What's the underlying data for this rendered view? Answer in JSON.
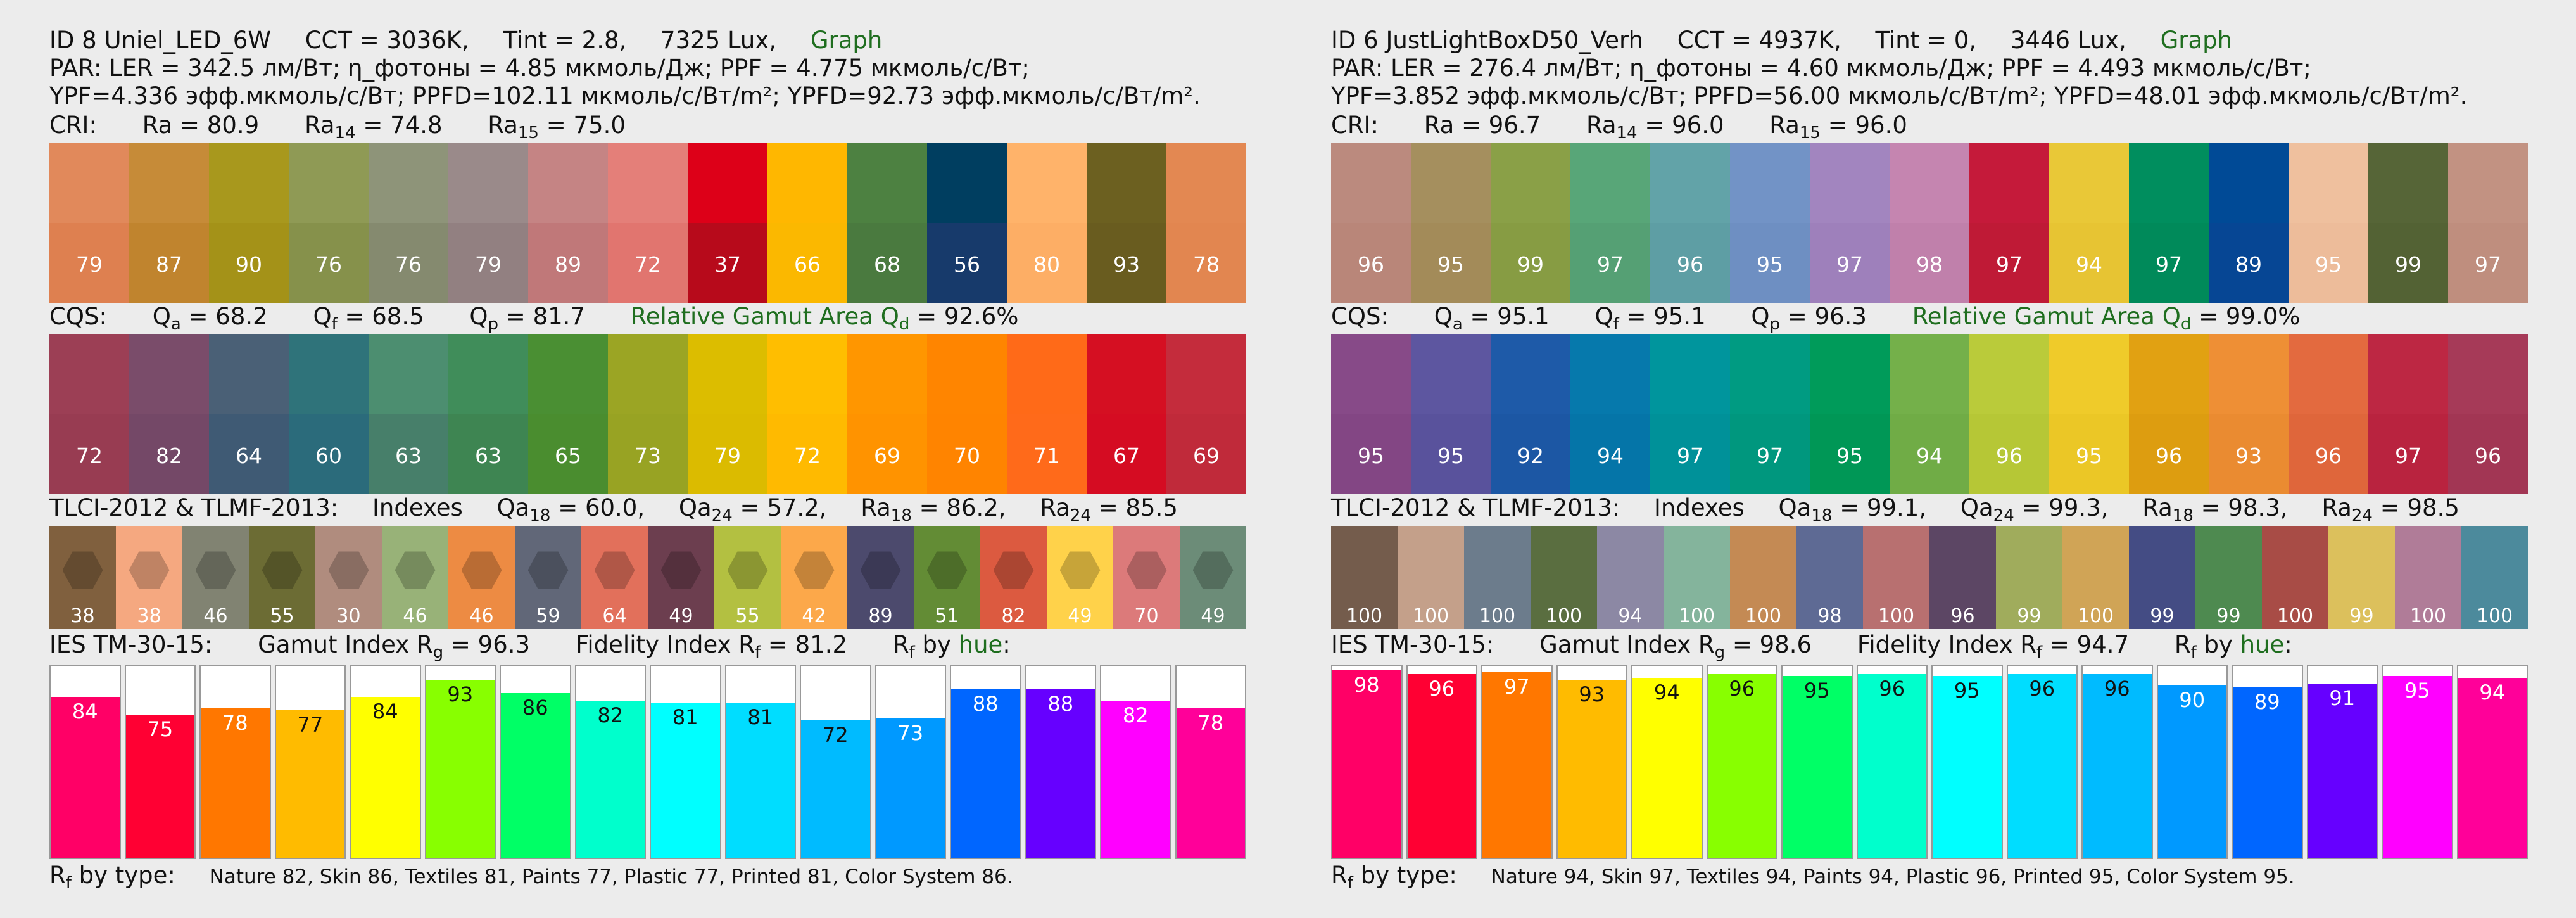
{
  "panels": [
    {
      "header": {
        "id_text": "ID 8 Uniel_LED_6W",
        "cct": "CCT = 3036K,",
        "tint": "Tint = 2.8,",
        "lux": "7325 Lux,",
        "graph_link": "Graph"
      },
      "par_line": "PAR:  LER = 342.5 лм/Вт; η_фотоны = 4.85 мкмоль/Дж; PPF = 4.775 мкмоль/с/Вт;",
      "ypf_line": "YPF=4.336 эфф.мкмоль/с/Вт; PPFD=102.11 мкмоль/с/Вт/m²; YPFD=92.73 эфф.мкмоль/с/Вт/m².",
      "cri": {
        "label": "CRI:",
        "ra": "Ra = 80.9",
        "ra14_pre": "Ra",
        "ra14_sub": "14",
        "ra14_val": " = 74.8",
        "ra15_pre": "Ra",
        "ra15_sub": "15",
        "ra15_val": " = 75.0"
      },
      "cri_swatches": [
        {
          "v": "79",
          "top": "#e1895b",
          "bot": "#de8050"
        },
        {
          "v": "87",
          "top": "#c68b38",
          "bot": "#c0842e"
        },
        {
          "v": "90",
          "top": "#a8981d",
          "bot": "#a49218"
        },
        {
          "v": "76",
          "top": "#8f9a55",
          "bot": "#86914b"
        },
        {
          "v": "76",
          "top": "#8e9479",
          "bot": "#858a6f"
        },
        {
          "v": "79",
          "top": "#9a8a8a",
          "bot": "#928081"
        },
        {
          "v": "89",
          "top": "#c58484",
          "bot": "#c07879"
        },
        {
          "v": "72",
          "top": "#e47f79",
          "bot": "#e1756f"
        },
        {
          "v": "37",
          "top": "#dd0018",
          "bot": "#b70a1b"
        },
        {
          "v": "66",
          "top": "#ffb700",
          "bot": "#fbb800"
        },
        {
          "v": "68",
          "top": "#4d8141",
          "bot": "#4a7a3f"
        },
        {
          "v": "56",
          "top": "#003e60",
          "bot": "#173a6b"
        },
        {
          "v": "80",
          "top": "#ffb36a",
          "bot": "#fdae65"
        },
        {
          "v": "93",
          "top": "#6c6020",
          "bot": "#695c1f"
        },
        {
          "v": "78",
          "top": "#e38852",
          "bot": "#e28650"
        }
      ],
      "cqs": {
        "label": "CQS:",
        "qa_pre": "Q",
        "qa_sub": "a",
        "qa_val": " = 68.2",
        "qf_pre": "Q",
        "qf_sub": "f",
        "qf_val": " = 68.5",
        "qp_pre": "Q",
        "qp_sub": "p",
        "qp_val": " = 81.7",
        "gamut_pre": "Relative Gamut Area Q",
        "gamut_sub": "d",
        "gamut_val": " = 92.6%"
      },
      "cqs_swatches": [
        {
          "v": "72",
          "top": "#9c3f55",
          "bot": "#983c52"
        },
        {
          "v": "82",
          "top": "#7a4c6a",
          "bot": "#744867"
        },
        {
          "v": "64",
          "top": "#4a6076",
          "bot": "#3f5a74"
        },
        {
          "v": "60",
          "top": "#2f737a",
          "bot": "#2b6b7b"
        },
        {
          "v": "63",
          "top": "#4c8e70",
          "bot": "#477f6a"
        },
        {
          "v": "63",
          "top": "#408d5a",
          "bot": "#3e8552"
        },
        {
          "v": "65",
          "top": "#4a8f33",
          "bot": "#4a8d2f"
        },
        {
          "v": "73",
          "top": "#9ba524",
          "bot": "#98a323"
        },
        {
          "v": "79",
          "top": "#dcbd00",
          "bot": "#dbbb00"
        },
        {
          "v": "72",
          "top": "#ffbe00",
          "bot": "#ffba00"
        },
        {
          "v": "69",
          "top": "#ff9600",
          "bot": "#ff9300"
        },
        {
          "v": "70",
          "top": "#ff8500",
          "bot": "#ff8400"
        },
        {
          "v": "71",
          "top": "#ff6a18",
          "bot": "#ff6a1a"
        },
        {
          "v": "67",
          "top": "#d50f22",
          "bot": "#d50c22"
        },
        {
          "v": "69",
          "top": "#c42c3c",
          "bot": "#c02a3a"
        }
      ],
      "tlci": {
        "label": "TLCI-2012 & TLMF-2013:",
        "indexes": "Indexes",
        "qa18_pre": "Qa",
        "qa18_sub": "18",
        "qa18_val": " = 60.0,",
        "qa24_pre": "Qa",
        "qa24_sub": "24",
        "qa24_val": " = 57.2,",
        "ra18_pre": "Ra",
        "ra18_sub": "18",
        "ra18_val": " = 86.2,",
        "ra24_pre": "Ra",
        "ra24_sub": "24",
        "ra24_val": " = 85.5"
      },
      "tlci_swatches": [
        {
          "v": "38",
          "c": "#80603e"
        },
        {
          "v": "38",
          "c": "#f5a880"
        },
        {
          "v": "46",
          "c": "#818372"
        },
        {
          "v": "55",
          "c": "#6c6c34"
        },
        {
          "v": "30",
          "c": "#b08c7e"
        },
        {
          "v": "46",
          "c": "#98b278"
        },
        {
          "v": "46",
          "c": "#ed8b43"
        },
        {
          "v": "59",
          "c": "#616778"
        },
        {
          "v": "64",
          "c": "#e2705b"
        },
        {
          "v": "49",
          "c": "#6c3e4f"
        },
        {
          "v": "55",
          "c": "#b3c041"
        },
        {
          "v": "42",
          "c": "#fca84a"
        },
        {
          "v": "89",
          "c": "#4c4a6d"
        },
        {
          "v": "51",
          "c": "#638c35"
        },
        {
          "v": "82",
          "c": "#dc5a40"
        },
        {
          "v": "49",
          "c": "#ffd24a"
        },
        {
          "v": "70",
          "c": "#dc7a7a"
        },
        {
          "v": "49",
          "c": "#6c8c78"
        }
      ],
      "tm30": {
        "label": "IES TM-30-15:",
        "rg_pre": "Gamut Index R",
        "rg_sub": "g",
        "rg_val": " = 96.3",
        "rf_pre": "Fidelity Index R",
        "rf_sub": "f",
        "rf_val": " = 81.2",
        "byhue_pre": "R",
        "byhue_sub": "f",
        "byhue_mid": "  by ",
        "byhue_link": "hue",
        "byhue_end": ":"
      },
      "tm30_bars": [
        {
          "v": "84",
          "pct": 84,
          "c": "#ff0066",
          "dark": false
        },
        {
          "v": "75",
          "pct": 75,
          "c": "#ff0033",
          "dark": false
        },
        {
          "v": "78",
          "pct": 78,
          "c": "#ff7700",
          "dark": false
        },
        {
          "v": "77",
          "pct": 77,
          "c": "#ffbb00",
          "dark": true
        },
        {
          "v": "84",
          "pct": 84,
          "c": "#ffff00",
          "dark": true
        },
        {
          "v": "93",
          "pct": 93,
          "c": "#88ff00",
          "dark": true
        },
        {
          "v": "86",
          "pct": 86,
          "c": "#00ff66",
          "dark": true
        },
        {
          "v": "82",
          "pct": 82,
          "c": "#00ffcc",
          "dark": true
        },
        {
          "v": "81",
          "pct": 81,
          "c": "#00ffff",
          "dark": true
        },
        {
          "v": "81",
          "pct": 81,
          "c": "#00ddff",
          "dark": true
        },
        {
          "v": "72",
          "pct": 72,
          "c": "#00bbff",
          "dark": true
        },
        {
          "v": "73",
          "pct": 73,
          "c": "#0099ff",
          "dark": false
        },
        {
          "v": "88",
          "pct": 88,
          "c": "#0066ff",
          "dark": false
        },
        {
          "v": "88",
          "pct": 88,
          "c": "#6600ff",
          "dark": false
        },
        {
          "v": "82",
          "pct": 82,
          "c": "#ff00ff",
          "dark": false
        },
        {
          "v": "78",
          "pct": 78,
          "c": "#ff0099",
          "dark": false
        }
      ],
      "rf_type": {
        "pre": "R",
        "sub": "f",
        "mid": "  by type:",
        "values": "Nature 82,  Skin 86,  Textiles 81,  Paints 77,  Plastic 77,  Printed 81,  Color System 86."
      }
    },
    {
      "header": {
        "id_text": "ID 6 JustLightBoxD50_Verh",
        "cct": "CCT = 4937K,",
        "tint": "Tint = 0,",
        "lux": "3446 Lux,",
        "graph_link": "Graph"
      },
      "par_line": "PAR:  LER = 276.4 лм/Вт; η_фотоны = 4.60 мкмоль/Дж; PPF = 4.493 мкмоль/с/Вт;",
      "ypf_line": "YPF=3.852 эфф.мкмоль/с/Вт; PPFD=56.00 мкмоль/с/Вт/m²; YPFD=48.01 эфф.мкмоль/с/Вт/m².",
      "cri": {
        "label": "CRI:",
        "ra": "Ra = 96.7",
        "ra14_pre": "Ra",
        "ra14_sub": "14",
        "ra14_val": " = 96.0",
        "ra15_pre": "Ra",
        "ra15_sub": "15",
        "ra15_val": " = 96.0"
      },
      "cri_swatches": [
        {
          "v": "96",
          "top": "#bb8a7e",
          "bot": "#b98679"
        },
        {
          "v": "95",
          "top": "#a58f5e",
          "bot": "#a38b59"
        },
        {
          "v": "99",
          "top": "#8aa047",
          "bot": "#879c43"
        },
        {
          "v": "97",
          "top": "#58a678",
          "bot": "#55a074"
        },
        {
          "v": "96",
          "top": "#62a3a8",
          "bot": "#5e9ea4"
        },
        {
          "v": "95",
          "top": "#7293c6",
          "bot": "#6e8fc2"
        },
        {
          "v": "97",
          "top": "#a285bf",
          "bot": "#9e80bb"
        },
        {
          "v": "98",
          "top": "#c585b0",
          "bot": "#c080ab"
        },
        {
          "v": "97",
          "top": "#c51a3a",
          "bot": "#bf1a36"
        },
        {
          "v": "94",
          "top": "#e9c837",
          "bot": "#e7c433"
        },
        {
          "v": "97",
          "top": "#008e5e",
          "bot": "#008a5a"
        },
        {
          "v": "89",
          "top": "#004a96",
          "bot": "#064694"
        },
        {
          "v": "95",
          "top": "#efc09e",
          "bot": "#edbc9a"
        },
        {
          "v": "99",
          "top": "#566537",
          "bot": "#536234"
        },
        {
          "v": "97",
          "top": "#c29282",
          "bot": "#bf8e7e"
        }
      ],
      "cqs": {
        "label": "CQS:",
        "qa_pre": "Q",
        "qa_sub": "a",
        "qa_val": " = 95.1",
        "qf_pre": "Q",
        "qf_sub": "f",
        "qf_val": " = 95.1",
        "qp_pre": "Q",
        "qp_sub": "p",
        "qp_val": " = 96.3",
        "gamut_pre": "Relative Gamut Area Q",
        "gamut_sub": "d",
        "gamut_val": " = 99.0%"
      },
      "cqs_swatches": [
        {
          "v": "95",
          "top": "#874a88",
          "bot": "#834684"
        },
        {
          "v": "95",
          "top": "#5d56a0",
          "bot": "#59529c"
        },
        {
          "v": "92",
          "top": "#1e5aa8",
          "bot": "#1c57a4"
        },
        {
          "v": "94",
          "top": "#0679ac",
          "bot": "#0575a8"
        },
        {
          "v": "97",
          "top": "#00959d",
          "bot": "#009199"
        },
        {
          "v": "97",
          "top": "#009b82",
          "bot": "#00977e"
        },
        {
          "v": "95",
          "top": "#009b5a",
          "bot": "#009756"
        },
        {
          "v": "94",
          "top": "#74b04a",
          "bot": "#70ac46"
        },
        {
          "v": "96",
          "top": "#bacb3a",
          "bot": "#b6c736"
        },
        {
          "v": "95",
          "top": "#efcb2a",
          "bot": "#ebc726"
        },
        {
          "v": "96",
          "top": "#e1a112",
          "bot": "#dd9d10"
        },
        {
          "v": "93",
          "top": "#ee8f35",
          "bot": "#ea8b31"
        },
        {
          "v": "96",
          "top": "#e36a3f",
          "bot": "#df663b"
        },
        {
          "v": "97",
          "top": "#bd2743",
          "bot": "#b9233f"
        },
        {
          "v": "96",
          "top": "#a63a58",
          "bot": "#a23654"
        }
      ],
      "tlci": {
        "label": "TLCI-2012 & TLMF-2013:",
        "indexes": "Indexes",
        "qa18_pre": "Qa",
        "qa18_sub": "18",
        "qa18_val": " = 99.1,",
        "qa24_pre": "Qa",
        "qa24_sub": "24",
        "qa24_val": " = 99.3,",
        "ra18_pre": "Ra",
        "ra18_sub": "18",
        "ra18_val": " = 98.3,",
        "ra24_pre": "Ra",
        "ra24_sub": "24",
        "ra24_val": " = 98.5"
      },
      "tlci_swatches": [
        {
          "v": "100",
          "c": "#745c4c"
        },
        {
          "v": "100",
          "c": "#c4a08a"
        },
        {
          "v": "100",
          "c": "#6c7c8c"
        },
        {
          "v": "100",
          "c": "#5a6e40"
        },
        {
          "v": "94",
          "c": "#8c88a4"
        },
        {
          "v": "100",
          "c": "#84b49c"
        },
        {
          "v": "100",
          "c": "#c48a54"
        },
        {
          "v": "98",
          "c": "#5e6a94"
        },
        {
          "v": "100",
          "c": "#b87070"
        },
        {
          "v": "96",
          "c": "#5c4664"
        },
        {
          "v": "99",
          "c": "#a0ac5c"
        },
        {
          "v": "100",
          "c": "#d0a456"
        },
        {
          "v": "99",
          "c": "#444c84"
        },
        {
          "v": "99",
          "c": "#4e8a50"
        },
        {
          "v": "100",
          "c": "#a84c46"
        },
        {
          "v": "99",
          "c": "#dcc05c"
        },
        {
          "v": "100",
          "c": "#b07c98"
        },
        {
          "v": "100",
          "c": "#4c8a9c"
        }
      ],
      "tm30": {
        "label": "IES TM-30-15:",
        "rg_pre": "Gamut Index R",
        "rg_sub": "g",
        "rg_val": " = 98.6",
        "rf_pre": "Fidelity Index R",
        "rf_sub": "f",
        "rf_val": " = 94.7",
        "byhue_pre": "R",
        "byhue_sub": "f",
        "byhue_mid": "  by ",
        "byhue_link": "hue",
        "byhue_end": ":"
      },
      "tm30_bars": [
        {
          "v": "98",
          "pct": 98,
          "c": "#ff0066",
          "dark": false
        },
        {
          "v": "96",
          "pct": 96,
          "c": "#ff0033",
          "dark": false
        },
        {
          "v": "97",
          "pct": 97,
          "c": "#ff7700",
          "dark": false
        },
        {
          "v": "93",
          "pct": 93,
          "c": "#ffbb00",
          "dark": true
        },
        {
          "v": "94",
          "pct": 94,
          "c": "#ffff00",
          "dark": true
        },
        {
          "v": "96",
          "pct": 96,
          "c": "#88ff00",
          "dark": true
        },
        {
          "v": "95",
          "pct": 95,
          "c": "#00ff66",
          "dark": true
        },
        {
          "v": "96",
          "pct": 96,
          "c": "#00ffcc",
          "dark": true
        },
        {
          "v": "95",
          "pct": 95,
          "c": "#00ffff",
          "dark": true
        },
        {
          "v": "96",
          "pct": 96,
          "c": "#00ddff",
          "dark": true
        },
        {
          "v": "96",
          "pct": 96,
          "c": "#00bbff",
          "dark": true
        },
        {
          "v": "90",
          "pct": 90,
          "c": "#0099ff",
          "dark": false
        },
        {
          "v": "89",
          "pct": 89,
          "c": "#0066ff",
          "dark": false
        },
        {
          "v": "91",
          "pct": 91,
          "c": "#6600ff",
          "dark": false
        },
        {
          "v": "95",
          "pct": 95,
          "c": "#ff00ff",
          "dark": false
        },
        {
          "v": "94",
          "pct": 94,
          "c": "#ff0099",
          "dark": false
        }
      ],
      "rf_type": {
        "pre": "R",
        "sub": "f",
        "mid": "  by type:",
        "values": "Nature 94,  Skin 97,  Textiles 94,  Paints 94,  Plastic 96,  Printed 95,  Color System 95."
      }
    }
  ]
}
